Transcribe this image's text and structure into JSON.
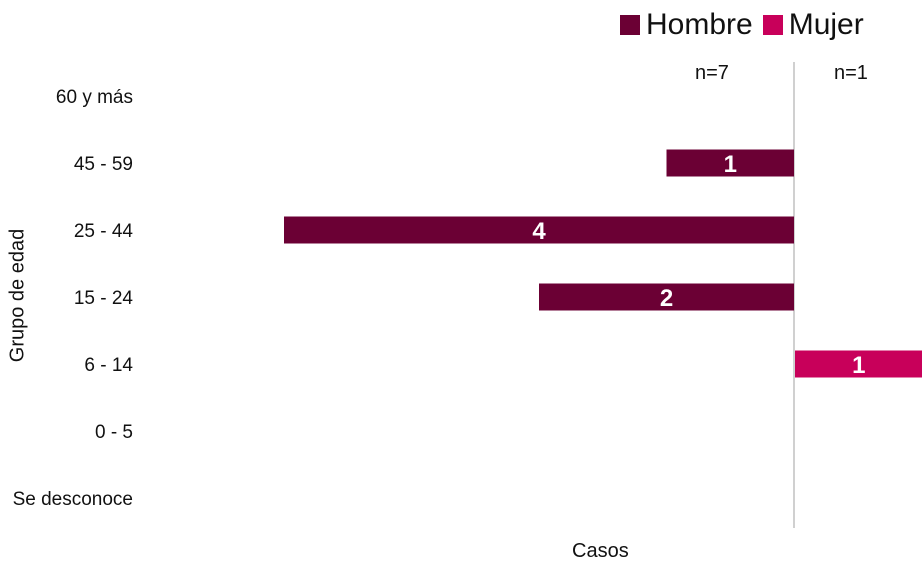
{
  "chart_data": {
    "type": "bar",
    "orientation": "horizontal",
    "layout": "population-pyramid",
    "categories": [
      "60 y más",
      "45 - 59",
      "25 - 44",
      "15 - 24",
      "6 - 14",
      "0 - 5",
      "Se desconoce"
    ],
    "series": [
      {
        "name": "Hombre",
        "color": "#6b0034",
        "values": [
          0,
          1,
          4,
          2,
          0,
          0,
          0
        ],
        "side": "left",
        "n_label": "n=7"
      },
      {
        "name": "Mujer",
        "color": "#c8005a",
        "values": [
          0,
          0,
          0,
          0,
          1,
          0,
          0
        ],
        "side": "right",
        "n_label": "n=1"
      }
    ],
    "xlabel": "Casos",
    "ylabel": "Grupo de edad",
    "legend_position": "top-right",
    "grid": false
  }
}
